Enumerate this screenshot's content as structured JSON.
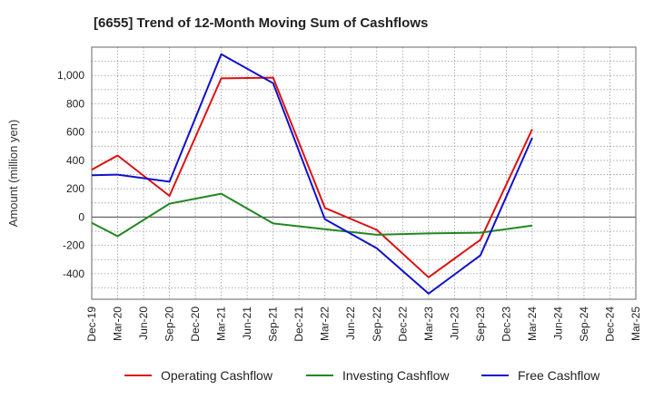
{
  "chart_data": {
    "type": "line",
    "title": "[6655]  Trend of 12-Month Moving Sum of Cashflows",
    "ylabel": "Amount (million yen)",
    "xlabel": "",
    "categories": [
      "Dec-19",
      "Mar-20",
      "Jun-20",
      "Sep-20",
      "Dec-20",
      "Mar-21",
      "Jun-21",
      "Sep-21",
      "Dec-21",
      "Mar-22",
      "Jun-22",
      "Sep-22",
      "Dec-22",
      "Mar-23",
      "Jun-23",
      "Sep-23",
      "Dec-23",
      "Mar-24",
      "Jun-24",
      "Sep-24",
      "Dec-24",
      "Mar-25"
    ],
    "yticks": [
      -400,
      -200,
      0,
      200,
      400,
      600,
      800,
      1000
    ],
    "ytick_labels": [
      "-400",
      "-200",
      "0",
      "200",
      "400",
      "600",
      "800",
      "1,000"
    ],
    "ylim": [
      -580,
      1200
    ],
    "grid": true,
    "legend_position": "bottom",
    "series": [
      {
        "name": "Operating Cashflow",
        "color": "#dd1111",
        "values": [
          335,
          435,
          null,
          150,
          null,
          980,
          null,
          985,
          null,
          65,
          null,
          -90,
          null,
          -425,
          null,
          -160,
          null,
          620,
          null,
          null,
          null,
          null
        ]
      },
      {
        "name": "Investing Cashflow",
        "color": "#228822",
        "values": [
          -40,
          -135,
          null,
          95,
          null,
          165,
          null,
          -45,
          null,
          -85,
          null,
          -125,
          null,
          -115,
          null,
          -110,
          null,
          -60,
          null,
          null,
          null,
          null
        ]
      },
      {
        "name": "Free Cashflow",
        "color": "#1111cc",
        "values": [
          295,
          300,
          null,
          250,
          null,
          1150,
          null,
          945,
          null,
          -15,
          null,
          -220,
          null,
          -540,
          null,
          -270,
          null,
          560,
          null,
          null,
          null,
          null
        ]
      }
    ]
  }
}
